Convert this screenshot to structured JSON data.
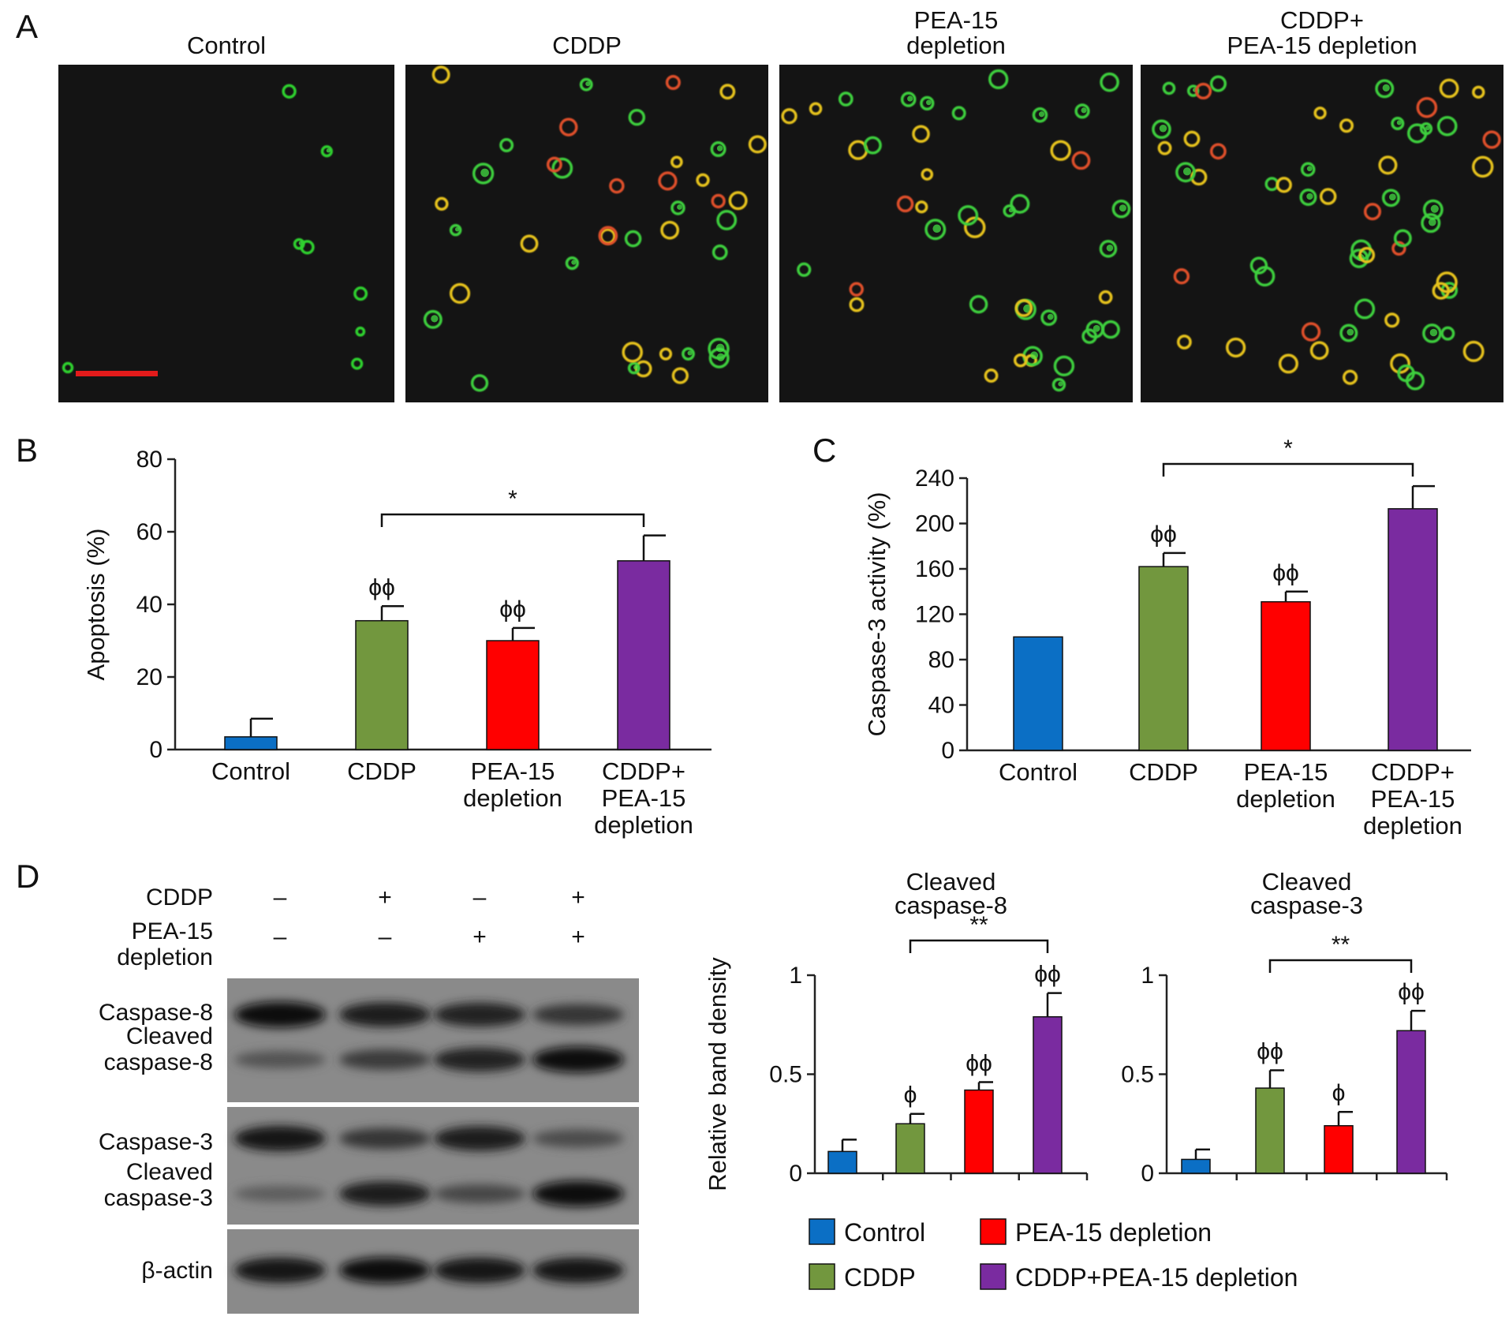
{
  "colors": {
    "control": "#0b6fc5",
    "cddp": "#72973e",
    "pea15": "#ff0000",
    "combo": "#7a2ba0",
    "scale_bar": "#e31b1b"
  },
  "panel_a": {
    "letter": "A",
    "titles": [
      [
        "Control"
      ],
      [
        "CDDP"
      ],
      [
        "PEA-15",
        "depletion"
      ],
      [
        "CDDP+",
        "PEA-15 depletion"
      ]
    ]
  },
  "chart_data": [
    {
      "panel": "B",
      "type": "bar",
      "ylabel": "Apoptosis (%)",
      "ylim": [
        0,
        80
      ],
      "yticks": [
        0,
        20,
        40,
        60,
        80
      ],
      "categories": [
        [
          "Control"
        ],
        [
          "CDDP"
        ],
        [
          "PEA-15",
          "depletion"
        ],
        [
          "CDDP+",
          "PEA-15",
          "depletion"
        ]
      ],
      "values": [
        3.5,
        35.5,
        30,
        52
      ],
      "errors": [
        5,
        4,
        3.5,
        7
      ],
      "annotations": [
        "",
        "ϕϕ",
        "ϕϕ",
        ""
      ],
      "bracket": {
        "from": 1,
        "to": 3,
        "label": "*"
      }
    },
    {
      "panel": "C",
      "type": "bar",
      "ylabel": "Caspase-3 activity (%)",
      "ylim": [
        0,
        240
      ],
      "yticks": [
        0,
        40,
        80,
        120,
        160,
        200,
        240
      ],
      "categories": [
        [
          "Control"
        ],
        [
          "CDDP"
        ],
        [
          "PEA-15",
          "depletion"
        ],
        [
          "CDDP+",
          "PEA-15",
          "depletion"
        ]
      ],
      "values": [
        100,
        162,
        131,
        213
      ],
      "errors": [
        0,
        12,
        9,
        20
      ],
      "annotations": [
        "",
        "ϕϕ",
        "ϕϕ",
        ""
      ],
      "bracket": {
        "from": 1,
        "to": 3,
        "label": "*"
      }
    },
    {
      "panel": "D1",
      "type": "bar",
      "title": [
        "Cleaved",
        "caspase-8"
      ],
      "ylabel": "Relative band density",
      "ylim": [
        0,
        1
      ],
      "yticks": [
        0,
        0.5,
        1
      ],
      "categories": [
        "Control",
        "CDDP",
        "PEA-15 depletion",
        "CDDP+PEA-15 depletion"
      ],
      "values": [
        0.11,
        0.25,
        0.42,
        0.79
      ],
      "errors": [
        0.06,
        0.05,
        0.04,
        0.12
      ],
      "annotations": [
        "",
        "ϕ",
        "ϕϕ",
        "ϕϕ"
      ],
      "bracket": {
        "from": 1,
        "to": 3,
        "label": "**"
      }
    },
    {
      "panel": "D2",
      "type": "bar",
      "title": [
        "Cleaved",
        "caspase-3"
      ],
      "ylim": [
        0,
        1
      ],
      "yticks": [
        0,
        0.5,
        1
      ],
      "categories": [
        "Control",
        "CDDP",
        "PEA-15 depletion",
        "CDDP+PEA-15 depletion"
      ],
      "values": [
        0.07,
        0.43,
        0.24,
        0.72
      ],
      "errors": [
        0.05,
        0.09,
        0.07,
        0.1
      ],
      "annotations": [
        "",
        "ϕϕ",
        "ϕ",
        "ϕϕ"
      ],
      "bracket": {
        "from": 1,
        "to": 3,
        "label": "**"
      }
    }
  ],
  "panel_b": {
    "letter": "B"
  },
  "panel_c": {
    "letter": "C"
  },
  "panel_d": {
    "letter": "D",
    "row_labels": {
      "cddp": "CDDP",
      "pea15": [
        "PEA-15",
        "depletion"
      ]
    },
    "cddp_signs": [
      "–",
      "+",
      "–",
      "+"
    ],
    "pea15_signs": [
      "–",
      "–",
      "+",
      "+"
    ],
    "blot_labels": [
      [
        "Caspase-8"
      ],
      [
        "Cleaved",
        "caspase-8"
      ],
      [
        "Caspase-3"
      ],
      [
        "Cleaved",
        "caspase-3"
      ],
      [
        "β-actin"
      ]
    ],
    "band_intensity": {
      "caspase8": [
        0.95,
        0.85,
        0.8,
        0.6
      ],
      "cleaved_caspase8": [
        0.35,
        0.55,
        0.8,
        0.95
      ],
      "caspase3": [
        0.9,
        0.6,
        0.85,
        0.4
      ],
      "cleaved_caspase3": [
        0.25,
        0.85,
        0.45,
        0.95
      ],
      "beta_actin": [
        0.9,
        0.95,
        0.9,
        0.9
      ]
    },
    "legend": [
      {
        "label": "Control",
        "color_key": "control"
      },
      {
        "label": "CDDP",
        "color_key": "cddp"
      },
      {
        "label": "PEA-15 depletion",
        "color_key": "pea15"
      },
      {
        "label": "CDDP+PEA-15 depletion",
        "color_key": "combo"
      }
    ]
  }
}
